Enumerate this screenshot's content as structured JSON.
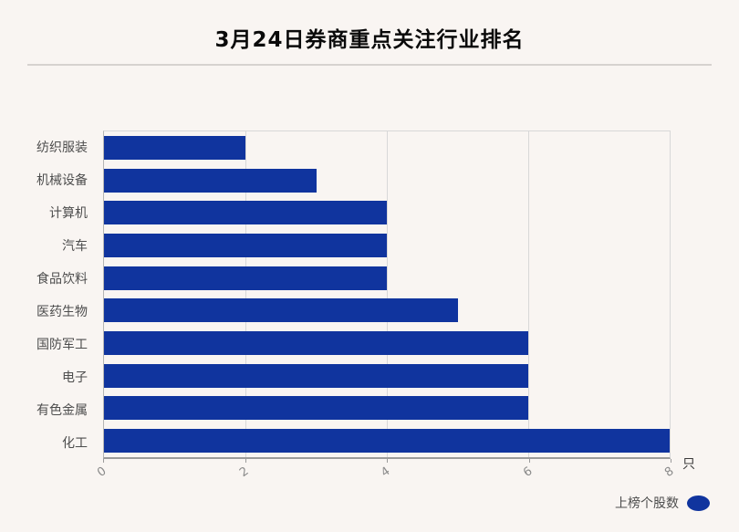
{
  "title": "3月24日券商重点关注行业排名",
  "colors": {
    "bar": "#10349e",
    "background": "#f9f5f2",
    "gridline": "#d8d8d8",
    "axis": "#9b9b9b"
  },
  "chart_data": {
    "type": "bar",
    "orientation": "horizontal",
    "title": "3月24日券商重点关注行业排名",
    "categories": [
      "纺织服装",
      "机械设备",
      "计算机",
      "汽车",
      "食品饮料",
      "医药生物",
      "国防军工",
      "电子",
      "有色金属",
      "化工"
    ],
    "values": [
      2,
      3,
      4,
      4,
      4,
      5,
      6,
      6,
      6,
      8
    ],
    "series_name": "上榜个股数",
    "xlabel": "只",
    "xlim": [
      0,
      8
    ],
    "x_ticks": [
      "0",
      "2",
      "4",
      "6",
      "8"
    ],
    "grid": true,
    "legend_position": "bottom-right",
    "bar_color": "#10349e"
  },
  "axis": {
    "unit": "只"
  },
  "legend": {
    "label": "上榜个股数"
  }
}
